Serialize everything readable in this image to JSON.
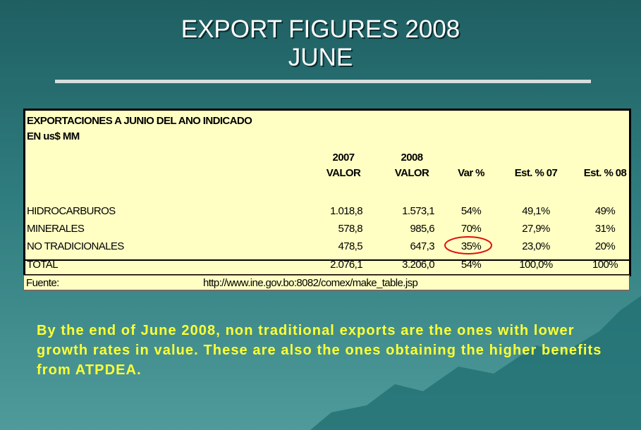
{
  "header": {
    "title": "EXPORT FIGURES 2008",
    "subtitle": "JUNE"
  },
  "table": {
    "caption": [
      "EXPORTACIONES A JUNIO DEL ANO INDICADO",
      "EN us$ MM"
    ],
    "year_headers": [
      "2007",
      "2008"
    ],
    "columns": [
      "VALOR",
      "VALOR",
      "Var %",
      "Est. % 07",
      "Est. % 08"
    ],
    "rows": [
      [
        "HIDROCARBUROS",
        "1.018,8",
        "1.573,1",
        "54%",
        "49,1%",
        "49%"
      ],
      [
        "MINERALES",
        "578,8",
        "985,6",
        "70%",
        "27,9%",
        "31%"
      ],
      [
        "NO TRADICIONALES",
        "478,5",
        "647,3",
        "35%",
        "23,0%",
        "20%"
      ],
      [
        "TOTAL",
        "2.076,1",
        "3.206,0",
        "54%",
        "100,0%",
        "100%"
      ]
    ],
    "source_label": "Fuente:",
    "source_url": "http://www.ine.gov.bo:8082/comex/make_table.jsp"
  },
  "note": "By the end of June 2008, non traditional exports are the ones with lower growth rates in value. These are also the ones obtaining the higher benefits from ATPDEA."
}
